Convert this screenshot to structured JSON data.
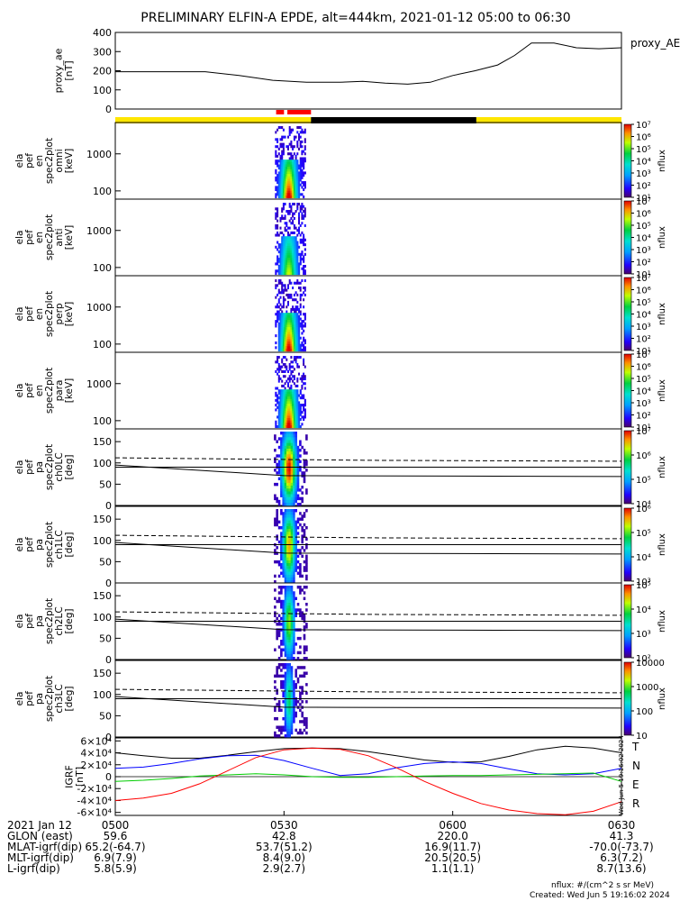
{
  "title": "PRELIMINARY ELFIN-A EPDE, alt=444km, 2021-01-12 05:00 to 06:30",
  "footer": {
    "units": "nflux: #/(cm^2 s sr MeV)",
    "created": "Created: Wed Jun  5 19:16:02 2024",
    "stamp": "Wed Jun  5 19:16:02 2024"
  },
  "colorbar_unit": "nflux",
  "colors": {
    "sunlit": "#ffe600",
    "shadow": "#000000",
    "science_bar": "#ff0000",
    "T": "#000000",
    "N": "#0000ff",
    "E": "#00cc00",
    "R": "#ff0000"
  },
  "chart_data": [
    {
      "type": "line",
      "id": "proxy_ae",
      "ylabel": [
        "proxy_ae",
        "[nT]"
      ],
      "legend": "proxy_AE",
      "ylim": [
        0,
        400
      ],
      "yticks": [
        0,
        100,
        200,
        300,
        400
      ],
      "x": [
        0,
        8,
        16,
        22,
        28,
        34,
        40,
        44,
        48,
        52,
        56,
        60,
        64,
        68,
        71,
        74,
        78,
        82,
        86,
        90
      ],
      "values": [
        195,
        195,
        195,
        175,
        150,
        140,
        140,
        145,
        135,
        130,
        140,
        175,
        200,
        230,
        280,
        345,
        345,
        320,
        315,
        320
      ]
    },
    {
      "type": "bar",
      "id": "orbit_bar",
      "segments": [
        {
          "from": 0,
          "to": 34.8,
          "state": "sunlit"
        },
        {
          "from": 34.8,
          "to": 64.2,
          "state": "shadow"
        },
        {
          "from": 64.2,
          "to": 90,
          "state": "sunlit"
        }
      ],
      "science_zones": [
        [
          28.6,
          30.0
        ],
        [
          30.6,
          34.8
        ]
      ]
    },
    {
      "type": "heatmap",
      "id": "en_spec_omni",
      "ylabel": [
        "ela",
        "pef",
        "en",
        "spec2plot",
        "omni",
        "[keV]"
      ],
      "yscale": "log",
      "ylim": [
        60,
        7000
      ],
      "yticks": [
        100,
        1000
      ],
      "cbar": {
        "scale": "log",
        "ticks": [
          "10¹",
          "10²",
          "10³",
          "10⁴",
          "10⁵",
          "10⁶",
          "10⁷"
        ]
      }
    },
    {
      "type": "heatmap",
      "id": "en_spec_anti",
      "ylabel": [
        "ela",
        "pef",
        "en",
        "spec2plot",
        "anti",
        "[keV]"
      ],
      "yscale": "log",
      "ylim": [
        60,
        7000
      ],
      "yticks": [
        100,
        1000
      ],
      "cbar": {
        "scale": "log",
        "ticks": [
          "10¹",
          "10²",
          "10³",
          "10⁴",
          "10⁵",
          "10⁶",
          "10⁷"
        ]
      }
    },
    {
      "type": "heatmap",
      "id": "en_spec_perp",
      "ylabel": [
        "ela",
        "pef",
        "en",
        "spec2plot",
        "perp",
        "[keV]"
      ],
      "yscale": "log",
      "ylim": [
        60,
        7000
      ],
      "yticks": [
        100,
        1000
      ],
      "cbar": {
        "scale": "log",
        "ticks": [
          "10¹",
          "10²",
          "10³",
          "10⁴",
          "10⁵",
          "10⁶",
          "10⁷"
        ]
      }
    },
    {
      "type": "heatmap",
      "id": "en_spec_para",
      "ylabel": [
        "ela",
        "pef",
        "en",
        "spec2plot",
        "para",
        "[keV]"
      ],
      "yscale": "log",
      "ylim": [
        60,
        7000
      ],
      "yticks": [
        100,
        1000
      ],
      "cbar": {
        "scale": "log",
        "ticks": [
          "10¹",
          "10²",
          "10³",
          "10⁴",
          "10⁵",
          "10⁶",
          "10⁷"
        ]
      }
    },
    {
      "type": "heatmap",
      "id": "pa_spec_ch0",
      "ylabel": [
        "ela",
        "pef",
        "pa",
        "spec2plot",
        "ch0LC",
        "[deg]"
      ],
      "yscale": "linear",
      "ylim": [
        0,
        180
      ],
      "yticks": [
        0,
        50,
        100,
        150
      ],
      "cbar": {
        "scale": "log",
        "ticks": [
          "10⁴",
          "10⁵",
          "10⁶",
          "10⁷"
        ]
      }
    },
    {
      "type": "heatmap",
      "id": "pa_spec_ch1",
      "ylabel": [
        "ela",
        "pef",
        "pa",
        "spec2plot",
        "ch1LC",
        "[deg]"
      ],
      "yscale": "linear",
      "ylim": [
        0,
        180
      ],
      "yticks": [
        0,
        50,
        100,
        150
      ],
      "cbar": {
        "scale": "log",
        "ticks": [
          "10³",
          "10⁴",
          "10⁵",
          "10⁶"
        ]
      }
    },
    {
      "type": "heatmap",
      "id": "pa_spec_ch2",
      "ylabel": [
        "ela",
        "pef",
        "pa",
        "spec2plot",
        "ch2LC",
        "[deg]"
      ],
      "yscale": "linear",
      "ylim": [
        0,
        180
      ],
      "yticks": [
        0,
        50,
        100,
        150
      ],
      "cbar": {
        "scale": "log",
        "ticks": [
          "10²",
          "10³",
          "10⁴",
          "10⁵"
        ]
      }
    },
    {
      "type": "heatmap",
      "id": "pa_spec_ch3",
      "ylabel": [
        "ela",
        "pef",
        "pa",
        "spec2plot",
        "ch3LC",
        "[deg]"
      ],
      "yscale": "linear",
      "ylim": [
        0,
        180
      ],
      "yticks": [
        0,
        50,
        100,
        150
      ],
      "cbar": {
        "scale": "log",
        "ticks": [
          "10",
          "100",
          "1000",
          "10000"
        ]
      }
    },
    {
      "type": "line",
      "id": "igrf",
      "ylabel": [
        "IGRF",
        "[nT]"
      ],
      "ylim": [
        -65000,
        65000
      ],
      "yticks": [
        "-6×10⁴",
        "-4×10⁴",
        "-2×10⁴",
        "0",
        "2×10⁴",
        "4×10⁴",
        "6×10⁴"
      ],
      "legend": [
        "T",
        "N",
        "E",
        "R"
      ],
      "x": [
        0,
        5,
        10,
        15,
        20,
        25,
        30,
        35,
        40,
        45,
        50,
        55,
        60,
        65,
        70,
        75,
        80,
        85,
        90
      ],
      "series": [
        {
          "name": "T",
          "values": [
            40000,
            35000,
            31000,
            31000,
            36000,
            42000,
            47000,
            48000,
            47000,
            42000,
            35000,
            28000,
            24000,
            25000,
            34000,
            45000,
            51000,
            48000,
            40000
          ]
        },
        {
          "name": "N",
          "values": [
            14000,
            16000,
            22000,
            30000,
            35000,
            36000,
            27000,
            14000,
            2000,
            5000,
            15000,
            22000,
            25000,
            22000,
            13000,
            5000,
            3000,
            5000,
            14000
          ]
        },
        {
          "name": "E",
          "values": [
            -8000,
            -6000,
            -3000,
            1000,
            3000,
            5000,
            3000,
            0,
            -1000,
            -1000,
            0,
            1000,
            2000,
            2000,
            3000,
            4000,
            5000,
            6000,
            -8000
          ]
        },
        {
          "name": "R",
          "values": [
            -40000,
            -36000,
            -28000,
            -12000,
            10000,
            32000,
            45000,
            48000,
            46000,
            35000,
            15000,
            -8000,
            -28000,
            -45000,
            -56000,
            -62000,
            -64000,
            -58000,
            -42000
          ]
        }
      ]
    }
  ],
  "overlay_lines": {
    "loss_cone_solid": [
      [
        0,
        95
      ],
      [
        30,
        70
      ],
      [
        90,
        68
      ]
    ],
    "loss_cone_dashed": [
      [
        0,
        112
      ],
      [
        45,
        106
      ],
      [
        90,
        104
      ]
    ],
    "anti_loss_cone": [
      [
        0,
        90
      ],
      [
        90,
        90
      ]
    ]
  },
  "axis_table": {
    "rows": [
      {
        "label": "2021 Jan 12",
        "values": [
          "0500",
          "0530",
          "0600",
          "0630"
        ]
      },
      {
        "label": "GLON (east)",
        "values": [
          "59.6",
          "42.8",
          "220.0",
          "41.3"
        ]
      },
      {
        "label": "MLAT-igrf(dip)",
        "values": [
          "65.2(-64.7)",
          "53.7(51.2)",
          "16.9(11.7)",
          "-70.0(-73.7)"
        ]
      },
      {
        "label": "MLT-igrf(dip)",
        "values": [
          "6.9(7.9)",
          "8.4(9.0)",
          "20.5(20.5)",
          "6.3(7.2)"
        ]
      },
      {
        "label": "L-igrf(dip)",
        "values": [
          "5.8(5.9)",
          "2.9(2.7)",
          "1.1(1.1)",
          "8.7(13.6)"
        ]
      }
    ]
  }
}
